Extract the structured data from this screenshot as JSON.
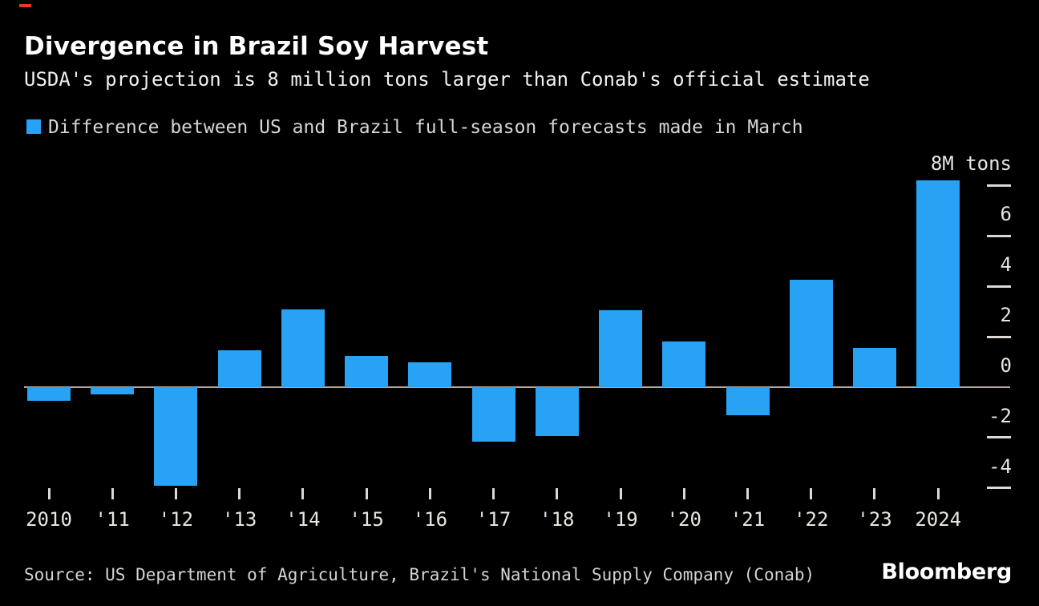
{
  "accent": {
    "red_dash_color": "#e8372c"
  },
  "header": {
    "title": "Divergence in Brazil Soy Harvest",
    "subtitle": "USDA's projection is 8 million tons larger than Conab's official estimate"
  },
  "legend": {
    "swatch_color": "#27a2f5",
    "label": "Difference between US and Brazil full-season forecasts made in March"
  },
  "chart_data": {
    "type": "bar",
    "title": "Divergence in Brazil Soy Harvest",
    "subtitle": "USDA's projection is 8 million tons larger than Conab's official estimate",
    "series_name": "Difference between US and Brazil full-season forecasts made in March",
    "categories": [
      "2010",
      "'11",
      "'12",
      "'13",
      "'14",
      "'15",
      "'16",
      "'17",
      "'18",
      "'19",
      "'20",
      "'21",
      "'22",
      "'23",
      "2024"
    ],
    "values": [
      -0.55,
      -0.3,
      -3.9,
      1.45,
      3.1,
      1.25,
      1.0,
      -2.15,
      -1.95,
      3.05,
      1.8,
      -1.1,
      4.25,
      1.55,
      8.2
    ],
    "unit_label": "8M tons",
    "y_ticks": [
      {
        "value": 8,
        "label": "8M tons"
      },
      {
        "value": 6,
        "label": "6"
      },
      {
        "value": 4,
        "label": "4"
      },
      {
        "value": 2,
        "label": "2"
      },
      {
        "value": 0,
        "label": "0"
      },
      {
        "value": -2,
        "label": "-2"
      },
      {
        "value": -4,
        "label": "-4"
      }
    ],
    "ylim": [
      -5,
      8.6
    ],
    "xlabel": "",
    "ylabel": "M tons",
    "grid": "off",
    "legend_position": "top-left",
    "bar_color": "#27a2f5",
    "baseline_color": "#b3a89b",
    "axis_text_color": "#e9e6e1",
    "tick_color": "#dcd9d4"
  },
  "footer": {
    "source": "Source: US Department of Agriculture, Brazil's National Supply Company (Conab)",
    "brand": "Bloomberg"
  }
}
